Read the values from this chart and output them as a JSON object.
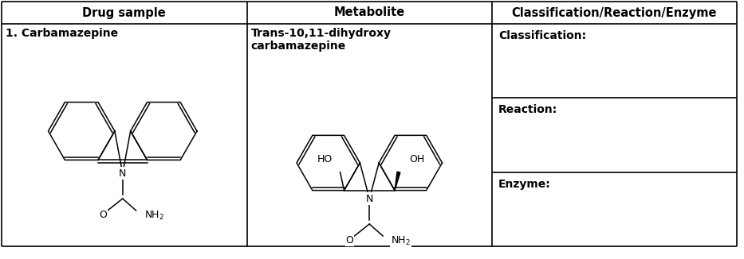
{
  "col_headers": [
    "Drug sample",
    "Metabolite",
    "Classification/Reaction/Enzyme"
  ],
  "row1_labels": {
    "drug_name": "1. Carbamazepine",
    "metabolite_name": "Trans-10,11-dihydroxy\ncarbamazepine",
    "classification_label": "Classification:",
    "reaction_label": "Reaction:",
    "enzyme_label": "Enzyme:"
  },
  "border_color": "#000000",
  "header_fontsize": 10.5,
  "cell_fontsize": 10,
  "label_fontsize": 10
}
